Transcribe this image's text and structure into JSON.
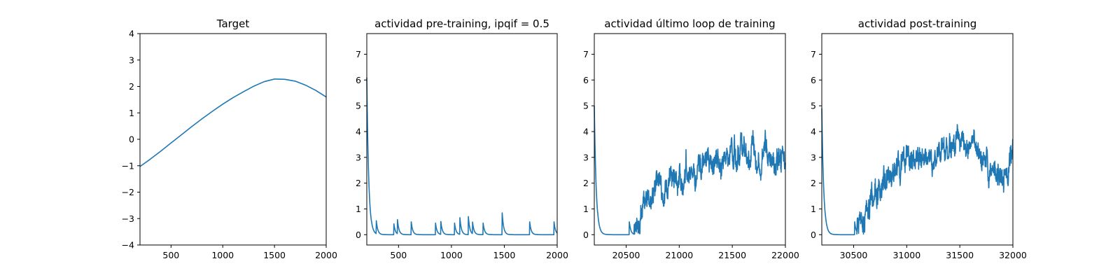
{
  "chart_data": [
    {
      "type": "line",
      "title": "Target",
      "xlim": [
        200,
        2000
      ],
      "ylim": [
        -4,
        4
      ],
      "xticks": [
        500,
        1000,
        1500,
        2000
      ],
      "yticks": [
        -4,
        -3,
        -2,
        -1,
        0,
        1,
        2,
        3,
        4
      ],
      "xtick_labels": [
        "500",
        "1000",
        "1500",
        "2000"
      ],
      "ytick_labels": [
        "−4",
        "−3",
        "−2",
        "−1",
        "0",
        "1",
        "2",
        "3",
        "4"
      ],
      "grid": false,
      "series": [
        {
          "color": "#1f77b4",
          "x": [
            200,
            300,
            400,
            500,
            600,
            700,
            800,
            900,
            1000,
            1100,
            1200,
            1300,
            1400,
            1500,
            1600,
            1700,
            1800,
            1900,
            2000
          ],
          "y": [
            -1.03,
            -0.75,
            -0.45,
            -0.14,
            0.17,
            0.48,
            0.78,
            1.06,
            1.33,
            1.58,
            1.8,
            2.01,
            2.18,
            2.28,
            2.27,
            2.2,
            2.05,
            1.85,
            1.6
          ]
        }
      ]
    },
    {
      "type": "line",
      "title": "actividad pre-training, ipqif = 0.5",
      "xlim": [
        200,
        2000
      ],
      "ylim": [
        -0.4,
        7.8
      ],
      "xticks": [
        500,
        1000,
        1500,
        2000
      ],
      "yticks": [
        0,
        1,
        2,
        3,
        4,
        5,
        6,
        7
      ],
      "xtick_labels": [
        "500",
        "1000",
        "1500",
        "2000"
      ],
      "ytick_labels": [
        "0",
        "1",
        "2",
        "3",
        "4",
        "5",
        "6",
        "7"
      ],
      "grid": false,
      "series": [
        {
          "color": "#1f77b4",
          "start": 200,
          "initial": 6.1,
          "decay": 18,
          "spikes": [
            [
              290,
              0.5
            ],
            [
              455,
              0.45
            ],
            [
              490,
              0.55
            ],
            [
              620,
              0.5
            ],
            [
              850,
              0.45
            ],
            [
              900,
              0.5
            ],
            [
              1030,
              0.45
            ],
            [
              1080,
              0.65
            ],
            [
              1160,
              0.7
            ],
            [
              1200,
              0.45
            ],
            [
              1300,
              0.45
            ],
            [
              1480,
              0.85
            ],
            [
              1740,
              0.5
            ],
            [
              1970,
              0.5
            ]
          ]
        }
      ]
    },
    {
      "type": "line",
      "title": "actividad último loop de training",
      "xlim": [
        20200,
        22000
      ],
      "ylim": [
        -0.4,
        7.8
      ],
      "xticks": [
        20500,
        21000,
        21500,
        22000
      ],
      "yticks": [
        0,
        1,
        2,
        3,
        4,
        5,
        6,
        7
      ],
      "xtick_labels": [
        "20500",
        "21000",
        "21500",
        "22000"
      ],
      "ytick_labels": [
        "0",
        "1",
        "2",
        "3",
        "4",
        "5",
        "6",
        "7"
      ],
      "grid": false,
      "series": [
        {
          "color": "#1f77b4",
          "start": 20200,
          "initial": 5.0,
          "decay": 18,
          "spikes": [
            [
              20530,
              0.5
            ],
            [
              20575,
              0.4
            ]
          ],
          "onset": 20580,
          "trend": [
            [
              20580,
              0.2
            ],
            [
              20650,
              0.8
            ],
            [
              20700,
              1.3
            ],
            [
              20800,
              1.7
            ],
            [
              20900,
              2.0
            ],
            [
              21000,
              2.3
            ],
            [
              21100,
              2.5
            ],
            [
              21200,
              2.65
            ],
            [
              21300,
              2.7
            ],
            [
              21400,
              2.85
            ],
            [
              21500,
              3.1
            ],
            [
              21600,
              3.3
            ],
            [
              21700,
              3.35
            ],
            [
              21800,
              3.25
            ],
            [
              21900,
              3.1
            ],
            [
              22000,
              2.7
            ]
          ]
        }
      ]
    },
    {
      "type": "line",
      "title": "actividad post-training",
      "xlim": [
        30200,
        32000
      ],
      "ylim": [
        -0.4,
        7.8
      ],
      "xticks": [
        30500,
        31000,
        31500,
        32000
      ],
      "yticks": [
        0,
        1,
        2,
        3,
        4,
        5,
        6,
        7
      ],
      "xtick_labels": [
        "30500",
        "31000",
        "31500",
        "32000"
      ],
      "ytick_labels": [
        "0",
        "1",
        "2",
        "3",
        "4",
        "5",
        "6",
        "7"
      ],
      "grid": false,
      "series": [
        {
          "color": "#1f77b4",
          "start": 30200,
          "initial": 4.9,
          "decay": 18,
          "spikes": [
            [
              30510,
              0.5
            ]
          ],
          "onset": 30530,
          "trend": [
            [
              30530,
              0.2
            ],
            [
              30600,
              0.5
            ],
            [
              30650,
              1.2
            ],
            [
              30700,
              1.6
            ],
            [
              30800,
              2.0
            ],
            [
              30900,
              2.5
            ],
            [
              31000,
              3.0
            ],
            [
              31100,
              2.8
            ],
            [
              31200,
              2.9
            ],
            [
              31300,
              3.2
            ],
            [
              31400,
              3.3
            ],
            [
              31500,
              3.5
            ],
            [
              31600,
              3.3
            ],
            [
              31700,
              3.0
            ],
            [
              31800,
              2.5
            ],
            [
              31900,
              2.3
            ],
            [
              32000,
              3.1
            ]
          ]
        }
      ]
    }
  ]
}
